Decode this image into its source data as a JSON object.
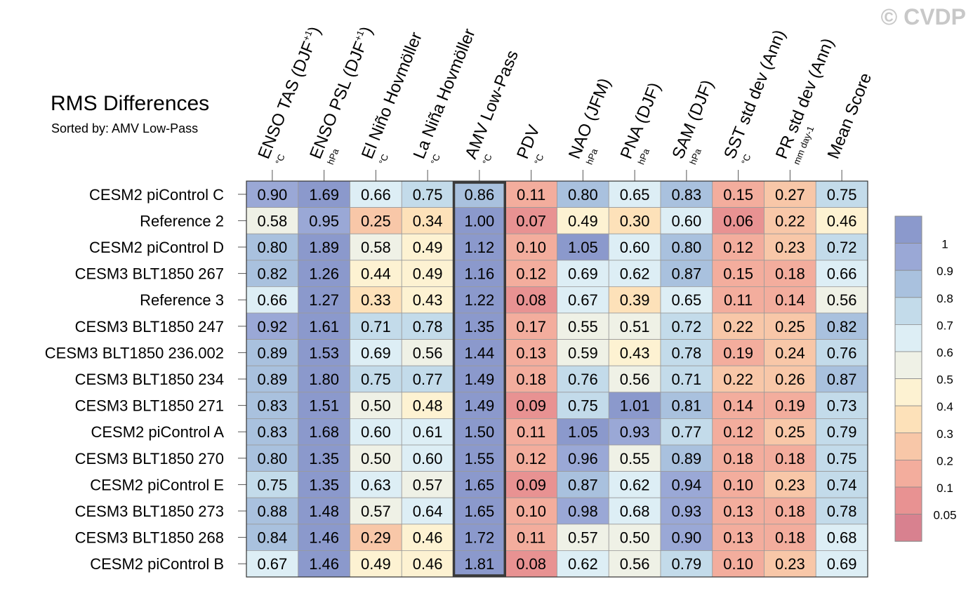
{
  "chart_data": {
    "type": "heatmap",
    "title": "RMS Differences",
    "subtitle": "Sorted by: AMV Low-Pass",
    "highlighted_column": "AMV Low-Pass",
    "columns": [
      {
        "label": "ENSO TAS (DJF",
        "sup": "+1",
        "close": ")",
        "unit": "°C"
      },
      {
        "label": "ENSO PSL (DJF",
        "sup": "+1",
        "close": ")",
        "unit": "hPa"
      },
      {
        "label": "El Niño Hovmöller",
        "sup": "",
        "close": "",
        "unit": "°C"
      },
      {
        "label": "La Niña Hovmöller",
        "sup": "",
        "close": "",
        "unit": "°C"
      },
      {
        "label": "AMV Low-Pass",
        "sup": "",
        "close": "",
        "unit": "°C"
      },
      {
        "label": "PDV",
        "sup": "",
        "close": "",
        "unit": "°C"
      },
      {
        "label": "NAO (JFM)",
        "sup": "",
        "close": "",
        "unit": "hPa"
      },
      {
        "label": "PNA (DJF)",
        "sup": "",
        "close": "",
        "unit": "hPa"
      },
      {
        "label": "SAM (DJF)",
        "sup": "",
        "close": "",
        "unit": "hPa"
      },
      {
        "label": "SST std dev (Ann)",
        "sup": "",
        "close": "",
        "unit": "°C"
      },
      {
        "label": "PR std dev (Ann)",
        "sup": "",
        "close": "",
        "unit": "mm day-1"
      },
      {
        "label": "Mean Score",
        "sup": "",
        "close": "",
        "unit": ""
      }
    ],
    "rows": [
      "CESM2 piControl C",
      "Reference 2",
      "CESM2 piControl D",
      "CESM3 BLT1850 267",
      "Reference 3",
      "CESM3 BLT1850 247",
      "CESM3 BLT1850 236.002",
      "CESM3 BLT1850 234",
      "CESM3 BLT1850 271",
      "CESM2 piControl A",
      "CESM3 BLT1850 270",
      "CESM2 piControl E",
      "CESM3 BLT1850 273",
      "CESM3 BLT1850 268",
      "CESM2 piControl B"
    ],
    "values": [
      [
        "0.90",
        "1.69",
        "0.66",
        "0.75",
        "0.86",
        "0.11",
        "0.80",
        "0.65",
        "0.83",
        "0.15",
        "0.27",
        "0.75"
      ],
      [
        "0.58",
        "0.95",
        "0.25",
        "0.34",
        "1.00",
        "0.07",
        "0.49",
        "0.30",
        "0.60",
        "0.06",
        "0.22",
        "0.46"
      ],
      [
        "0.80",
        "1.89",
        "0.58",
        "0.49",
        "1.12",
        "0.10",
        "1.05",
        "0.60",
        "0.80",
        "0.12",
        "0.23",
        "0.72"
      ],
      [
        "0.82",
        "1.26",
        "0.44",
        "0.49",
        "1.16",
        "0.12",
        "0.69",
        "0.62",
        "0.87",
        "0.15",
        "0.18",
        "0.66"
      ],
      [
        "0.66",
        "1.27",
        "0.33",
        "0.43",
        "1.22",
        "0.08",
        "0.67",
        "0.39",
        "0.65",
        "0.11",
        "0.14",
        "0.56"
      ],
      [
        "0.92",
        "1.61",
        "0.71",
        "0.78",
        "1.35",
        "0.17",
        "0.55",
        "0.51",
        "0.72",
        "0.22",
        "0.25",
        "0.82"
      ],
      [
        "0.89",
        "1.53",
        "0.69",
        "0.56",
        "1.44",
        "0.13",
        "0.59",
        "0.43",
        "0.78",
        "0.19",
        "0.24",
        "0.76"
      ],
      [
        "0.89",
        "1.80",
        "0.75",
        "0.77",
        "1.49",
        "0.18",
        "0.76",
        "0.56",
        "0.71",
        "0.22",
        "0.26",
        "0.87"
      ],
      [
        "0.83",
        "1.51",
        "0.50",
        "0.48",
        "1.49",
        "0.09",
        "0.75",
        "1.01",
        "0.81",
        "0.14",
        "0.19",
        "0.73"
      ],
      [
        "0.83",
        "1.68",
        "0.60",
        "0.61",
        "1.50",
        "0.11",
        "1.05",
        "0.93",
        "0.77",
        "0.12",
        "0.25",
        "0.79"
      ],
      [
        "0.80",
        "1.35",
        "0.50",
        "0.60",
        "1.55",
        "0.12",
        "0.96",
        "0.55",
        "0.89",
        "0.18",
        "0.18",
        "0.75"
      ],
      [
        "0.75",
        "1.35",
        "0.63",
        "0.57",
        "1.65",
        "0.09",
        "0.87",
        "0.62",
        "0.94",
        "0.10",
        "0.23",
        "0.74"
      ],
      [
        "0.88",
        "1.48",
        "0.57",
        "0.64",
        "1.65",
        "0.10",
        "0.98",
        "0.68",
        "0.93",
        "0.13",
        "0.18",
        "0.78"
      ],
      [
        "0.84",
        "1.46",
        "0.29",
        "0.46",
        "1.72",
        "0.11",
        "0.57",
        "0.50",
        "0.90",
        "0.13",
        "0.18",
        "0.68"
      ],
      [
        "0.67",
        "1.46",
        "0.49",
        "0.46",
        "1.81",
        "0.08",
        "0.62",
        "0.56",
        "0.79",
        "0.10",
        "0.23",
        "0.69"
      ]
    ],
    "colorbar": {
      "ticks": [
        "1",
        "0.9",
        "0.8",
        "0.7",
        "0.6",
        "0.5",
        "0.4",
        "0.3",
        "0.2",
        "0.1",
        "0.05"
      ],
      "thresholds": [
        0.05,
        0.1,
        0.2,
        0.3,
        0.4,
        0.5,
        0.6,
        0.7,
        0.8,
        0.9,
        1
      ],
      "colors": [
        "#d8818f",
        "#e89292",
        "#f3ad9d",
        "#f8c7a8",
        "#fde1b9",
        "#fdf2d2",
        "#eff1e6",
        "#ddeef5",
        "#c3dbea",
        "#a9c1de",
        "#9aa8d6",
        "#8b99cc"
      ]
    }
  },
  "watermark": "© CVDP"
}
